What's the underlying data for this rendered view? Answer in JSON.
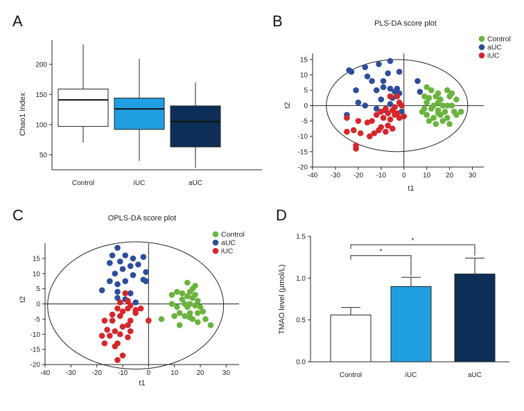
{
  "figure": {
    "panel_labels": [
      "A",
      "B",
      "C",
      "D"
    ]
  },
  "chart_data": [
    {
      "type": "box",
      "panel": "A",
      "title": "",
      "ylabel": "Chao1 Index",
      "xlabel": "",
      "ylim": [
        25,
        240
      ],
      "yticks": [
        50,
        100,
        150,
        200
      ],
      "categories": [
        "Control",
        "iUC",
        "aUC"
      ],
      "boxes": [
        {
          "min": 70,
          "q1": 97,
          "median": 141,
          "q3": 159,
          "max": 233,
          "color": "#ffffff"
        },
        {
          "min": 40,
          "q1": 92,
          "median": 126,
          "q3": 144,
          "max": 209,
          "color": "#1f9fe0"
        },
        {
          "min": 28,
          "q1": 63,
          "median": 105,
          "q3": 131,
          "max": 170,
          "color": "#0d2f57"
        }
      ]
    },
    {
      "type": "scatter",
      "panel": "B",
      "title": "PLS-DA score plot",
      "xlabel": "t1",
      "ylabel": "t2",
      "xlim": [
        -40,
        35
      ],
      "ylim": [
        -20,
        17
      ],
      "xticks": [
        -40,
        -30,
        -20,
        -10,
        0,
        10,
        20,
        30
      ],
      "yticks": [
        -20,
        -15,
        -10,
        -5,
        0,
        5,
        10,
        15
      ],
      "ellipse": {
        "cx": -3,
        "cy": 0,
        "rx": 31,
        "ry": 15
      },
      "legend": [
        "Control",
        "aUC",
        "iUC"
      ],
      "series": [
        {
          "name": "Control",
          "color": "#6ab43e",
          "points": [
            [
              10,
              6
            ],
            [
              12,
              5
            ],
            [
              15,
              4
            ],
            [
              19,
              5
            ],
            [
              21,
              4
            ],
            [
              9,
              3
            ],
            [
              11,
              2.5
            ],
            [
              14,
              3
            ],
            [
              16,
              2
            ],
            [
              20,
              3
            ],
            [
              23,
              2
            ],
            [
              10,
              1
            ],
            [
              13,
              0
            ],
            [
              15,
              1
            ],
            [
              17,
              0
            ],
            [
              19,
              0
            ],
            [
              21,
              0
            ],
            [
              9,
              -1
            ],
            [
              12,
              -1
            ],
            [
              15,
              -1.5
            ],
            [
              18,
              -2
            ],
            [
              22,
              -2
            ],
            [
              25,
              -2
            ],
            [
              10,
              -3
            ],
            [
              13,
              -4
            ],
            [
              16,
              -3
            ],
            [
              19,
              -4
            ],
            [
              11,
              -5
            ],
            [
              17,
              -5
            ],
            [
              20,
              -6
            ],
            [
              14,
              -6
            ],
            [
              23,
              -3
            ],
            [
              8,
              -2
            ],
            [
              15,
              -2.5
            ]
          ]
        },
        {
          "name": "aUC",
          "color": "#2e4d9a",
          "points": [
            [
              -6,
              14.5
            ],
            [
              -24,
              11.5
            ],
            [
              -17,
              12.5
            ],
            [
              -11,
              13.5
            ],
            [
              -23,
              11
            ],
            [
              -16,
              9.5
            ],
            [
              -2,
              11
            ],
            [
              -7,
              10.5
            ],
            [
              -9,
              8
            ],
            [
              6,
              8
            ],
            [
              -14,
              8
            ],
            [
              -9,
              6
            ],
            [
              -6,
              5.5
            ],
            [
              -3,
              5.5
            ],
            [
              -21,
              5
            ],
            [
              -12,
              5
            ],
            [
              -4,
              4.5
            ],
            [
              -2,
              4
            ],
            [
              -5,
              2.5
            ],
            [
              -10,
              2
            ],
            [
              -8,
              -1.5
            ],
            [
              -1,
              -2
            ],
            [
              -17,
              0
            ],
            [
              -25,
              -3
            ],
            [
              -6,
              0.5
            ],
            [
              -12,
              -1
            ],
            [
              7,
              4.5
            ],
            [
              -20,
              1
            ]
          ]
        },
        {
          "name": "iUC",
          "color": "#d6262c",
          "points": [
            [
              -3,
              3
            ],
            [
              -6,
              3
            ],
            [
              -2,
              1
            ],
            [
              -1,
              0
            ],
            [
              -4,
              -0.5
            ],
            [
              -8,
              -1
            ],
            [
              -5,
              -1.5
            ],
            [
              -3,
              -2.5
            ],
            [
              0,
              -3.5
            ],
            [
              -2,
              -4
            ],
            [
              -10,
              -2
            ],
            [
              -12,
              -3
            ],
            [
              -9,
              -4
            ],
            [
              -6,
              -4.5
            ],
            [
              -14,
              -5
            ],
            [
              -16,
              -5.5
            ],
            [
              -20,
              -5
            ],
            [
              -25,
              -4
            ],
            [
              -7,
              -6.5
            ],
            [
              -5,
              -7.5
            ],
            [
              -11,
              -8
            ],
            [
              -8,
              -8.5
            ],
            [
              -22,
              -8
            ],
            [
              -19,
              -9
            ],
            [
              -15,
              -10
            ],
            [
              -25,
              -8.5
            ],
            [
              -13,
              -9
            ],
            [
              -21,
              -13
            ],
            [
              -21,
              -14
            ],
            [
              -4,
              -3
            ],
            [
              -7,
              -2.5
            ],
            [
              -10,
              -7
            ]
          ]
        }
      ]
    },
    {
      "type": "scatter",
      "panel": "C",
      "title": "OPLS-DA score plot",
      "xlabel": "t1",
      "ylabel": "t2",
      "xlim": [
        -40,
        35
      ],
      "ylim": [
        -20,
        20
      ],
      "xticks": [
        -40,
        -30,
        -20,
        -10,
        0,
        10,
        20,
        30
      ],
      "yticks": [
        -20,
        -15,
        -10,
        -5,
        0,
        5,
        10,
        15
      ],
      "ellipse": {
        "cx": -5,
        "cy": -0.5,
        "rx": 34,
        "ry": 21
      },
      "legend": [
        "Control",
        "aUC",
        "iUC"
      ],
      "series": [
        {
          "name": "Control",
          "color": "#6ab43e",
          "points": [
            [
              15,
              7
            ],
            [
              18,
              6
            ],
            [
              17,
              5
            ],
            [
              11,
              4
            ],
            [
              13,
              3.5
            ],
            [
              16,
              4
            ],
            [
              18,
              3
            ],
            [
              9,
              3
            ],
            [
              15,
              2.5
            ],
            [
              13,
              1.5
            ],
            [
              17,
              2
            ],
            [
              19,
              1
            ],
            [
              14,
              0
            ],
            [
              16,
              0
            ],
            [
              18,
              -0.5
            ],
            [
              9,
              0
            ],
            [
              11,
              -1
            ],
            [
              15,
              -1
            ],
            [
              20,
              -1
            ],
            [
              12,
              -3
            ],
            [
              16,
              -3
            ],
            [
              19,
              -3
            ],
            [
              21,
              -2.5
            ],
            [
              10,
              -4
            ],
            [
              14,
              -4
            ],
            [
              17,
              -5
            ],
            [
              22,
              -5
            ],
            [
              24,
              -7
            ],
            [
              5,
              -5
            ],
            [
              12,
              -7
            ],
            [
              19,
              -6
            ],
            [
              16,
              -4.5
            ]
          ]
        },
        {
          "name": "aUC",
          "color": "#2e4d9a",
          "points": [
            [
              -12,
              18.5
            ],
            [
              -14,
              16
            ],
            [
              -9,
              16
            ],
            [
              -2,
              15.5
            ],
            [
              -6,
              15
            ],
            [
              -11,
              14
            ],
            [
              -15,
              13.5
            ],
            [
              -7,
              12.5
            ],
            [
              -4,
              13
            ],
            [
              -10,
              11.5
            ],
            [
              -13,
              10
            ],
            [
              -1,
              10.5
            ],
            [
              -6,
              9.5
            ],
            [
              -15,
              7.5
            ],
            [
              -9,
              7.5
            ],
            [
              -12,
              6.5
            ],
            [
              -2,
              8
            ],
            [
              -1,
              7.5
            ],
            [
              -18,
              4.5
            ],
            [
              -12,
              4
            ],
            [
              -7,
              3.5
            ],
            [
              -9,
              1.5
            ],
            [
              -12,
              2
            ],
            [
              -5,
              0.5
            ]
          ]
        },
        {
          "name": "iUC",
          "color": "#d6262c",
          "points": [
            [
              -9,
              3.5
            ],
            [
              -11,
              0.5
            ],
            [
              -8,
              1
            ],
            [
              -7,
              -0.5
            ],
            [
              -12,
              -1.5
            ],
            [
              -8,
              -1.5
            ],
            [
              -5,
              -2
            ],
            [
              -10,
              -2.5
            ],
            [
              -14,
              -3.5
            ],
            [
              -11,
              -4
            ],
            [
              -17,
              -5.5
            ],
            [
              -14,
              -5.5
            ],
            [
              -7,
              -5.5
            ],
            [
              0,
              -5.5
            ],
            [
              -10,
              -7.5
            ],
            [
              -8,
              -7
            ],
            [
              -16,
              -8.5
            ],
            [
              -13,
              -9
            ],
            [
              -7,
              -9
            ],
            [
              -18,
              -10.5
            ],
            [
              -15,
              -10.5
            ],
            [
              -11,
              -10
            ],
            [
              -8,
              -11
            ],
            [
              -12,
              -13
            ],
            [
              -17,
              -13
            ],
            [
              -13,
              -14
            ],
            [
              -10,
              -17
            ],
            [
              -12,
              -18.5
            ],
            [
              -3,
              -1.5
            ],
            [
              -5,
              -3
            ]
          ]
        }
      ]
    },
    {
      "type": "bar",
      "panel": "D",
      "title": "",
      "ylabel": "TMAO level (μmol/L)",
      "xlabel": "",
      "ylim": [
        0,
        1.5
      ],
      "yticks": [
        "0.0",
        "0.5",
        "1.0",
        "1.5"
      ],
      "categories": [
        "Control",
        "iUC",
        "aUC"
      ],
      "values": [
        0.56,
        0.9,
        1.05
      ],
      "errors": [
        0.09,
        0.11,
        0.19
      ],
      "colors": [
        "#ffffff",
        "#1f9fe0",
        "#0d2f57"
      ],
      "significance": [
        {
          "from": "Control",
          "to": "iUC",
          "label": "*",
          "level": 1.27
        },
        {
          "from": "Control",
          "to": "aUC",
          "label": "*",
          "level": 1.4
        }
      ]
    }
  ]
}
